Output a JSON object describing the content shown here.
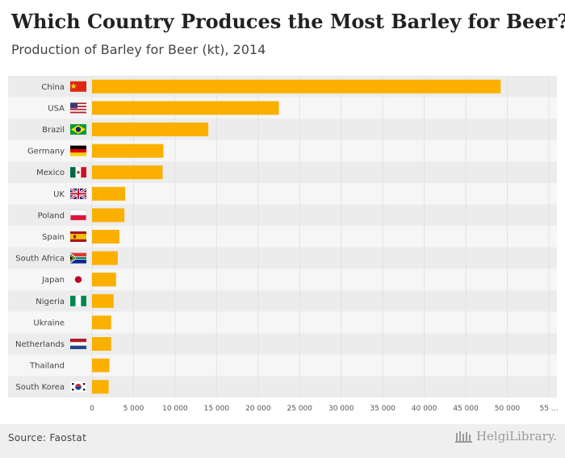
{
  "title": "Which Country Produces the Most Barley for Beer?",
  "subtitle": "Production of Barley for Beer (kt), 2014",
  "source": "Source: Faostat",
  "brand": "HelgiLibrary.",
  "colors": {
    "bar": "#fbb000",
    "band_dark": "#ececec",
    "band_light": "#f6f6f6"
  },
  "chart_data": {
    "type": "bar",
    "orientation": "horizontal",
    "title": "Which Country Produces the Most Barley for Beer?",
    "subtitle": "Production of Barley for Beer (kt), 2014",
    "xlabel": "",
    "ylabel": "",
    "xlim": [
      0,
      55000
    ],
    "x_ticks": [
      "0",
      "5 000",
      "10 000",
      "15 000",
      "20 000",
      "25 000",
      "30 000",
      "35 000",
      "40 000",
      "45 000",
      "50 000",
      "55 ..."
    ],
    "x_tick_values": [
      0,
      5000,
      10000,
      15000,
      20000,
      25000,
      30000,
      35000,
      40000,
      45000,
      50000,
      55000
    ],
    "categories": [
      "China",
      "USA",
      "Brazil",
      "Germany",
      "Mexico",
      "UK",
      "Poland",
      "Spain",
      "South Africa",
      "Japan",
      "Nigeria",
      "Ukraine",
      "Netherlands",
      "Thailand",
      "South Korea"
    ],
    "flags": [
      "china",
      "usa",
      "brazil",
      "germany",
      "mexico",
      "uk",
      "poland",
      "spain",
      "south-africa",
      "japan",
      "nigeria",
      "",
      "netherlands",
      "",
      "south-korea"
    ],
    "values": [
      49200,
      22500,
      14000,
      8600,
      8500,
      4000,
      3900,
      3300,
      3100,
      2900,
      2600,
      2300,
      2300,
      2100,
      2000
    ],
    "grid": true
  }
}
